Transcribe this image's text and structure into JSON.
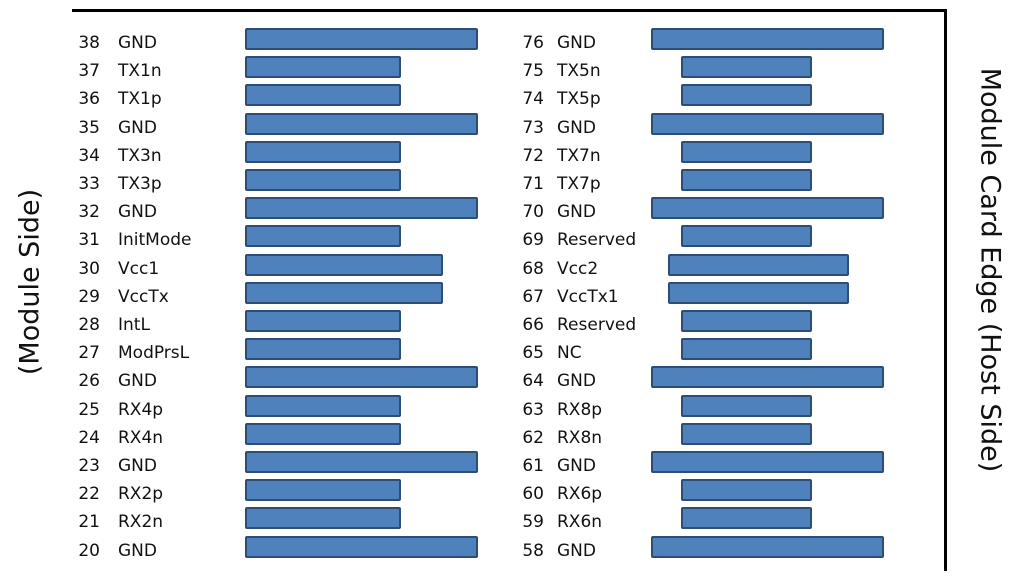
{
  "labels": {
    "left": "(Module Side)",
    "right": "Module Card Edge (Host Side)"
  },
  "colors": {
    "pad_fill": "#4f81bd",
    "pad_border": "#2c4d75"
  },
  "left_pins": [
    {
      "num": "38",
      "name": "GND",
      "pad": "long"
    },
    {
      "num": "37",
      "name": "TX1n",
      "pad": "short"
    },
    {
      "num": "36",
      "name": "TX1p",
      "pad": "short"
    },
    {
      "num": "35",
      "name": "GND",
      "pad": "long"
    },
    {
      "num": "34",
      "name": "TX3n",
      "pad": "short"
    },
    {
      "num": "33",
      "name": "TX3p",
      "pad": "short"
    },
    {
      "num": "32",
      "name": "GND",
      "pad": "long"
    },
    {
      "num": "31",
      "name": "InitMode",
      "pad": "short"
    },
    {
      "num": "30",
      "name": "Vcc1",
      "pad": "medium"
    },
    {
      "num": "29",
      "name": "VccTx",
      "pad": "medium"
    },
    {
      "num": "28",
      "name": "IntL",
      "pad": "short"
    },
    {
      "num": "27",
      "name": "ModPrsL",
      "pad": "short"
    },
    {
      "num": "26",
      "name": "GND",
      "pad": "long"
    },
    {
      "num": "25",
      "name": "RX4p",
      "pad": "short"
    },
    {
      "num": "24",
      "name": "RX4n",
      "pad": "short"
    },
    {
      "num": "23",
      "name": "GND",
      "pad": "long"
    },
    {
      "num": "22",
      "name": "RX2p",
      "pad": "short"
    },
    {
      "num": "21",
      "name": "RX2n",
      "pad": "short"
    },
    {
      "num": "20",
      "name": "GND",
      "pad": "long"
    }
  ],
  "right_pins": [
    {
      "num": "76",
      "name": "GND",
      "pad": "long"
    },
    {
      "num": "75",
      "name": "TX5n",
      "pad": "short"
    },
    {
      "num": "74",
      "name": "TX5p",
      "pad": "short"
    },
    {
      "num": "73",
      "name": "GND",
      "pad": "long"
    },
    {
      "num": "72",
      "name": "TX7n",
      "pad": "short"
    },
    {
      "num": "71",
      "name": "TX7p",
      "pad": "short"
    },
    {
      "num": "70",
      "name": "GND",
      "pad": "long"
    },
    {
      "num": "69",
      "name": "Reserved",
      "pad": "short"
    },
    {
      "num": "68",
      "name": "Vcc2",
      "pad": "medium"
    },
    {
      "num": "67",
      "name": "VccTx1",
      "pad": "medium"
    },
    {
      "num": "66",
      "name": "Reserved",
      "pad": "short"
    },
    {
      "num": "65",
      "name": "NC",
      "pad": "short"
    },
    {
      "num": "64",
      "name": "GND",
      "pad": "long"
    },
    {
      "num": "63",
      "name": "RX8p",
      "pad": "short"
    },
    {
      "num": "62",
      "name": "RX8n",
      "pad": "short"
    },
    {
      "num": "61",
      "name": "GND",
      "pad": "long"
    },
    {
      "num": "60",
      "name": "RX6p",
      "pad": "short"
    },
    {
      "num": "59",
      "name": "RX6n",
      "pad": "short"
    },
    {
      "num": "58",
      "name": "GND",
      "pad": "long"
    }
  ]
}
